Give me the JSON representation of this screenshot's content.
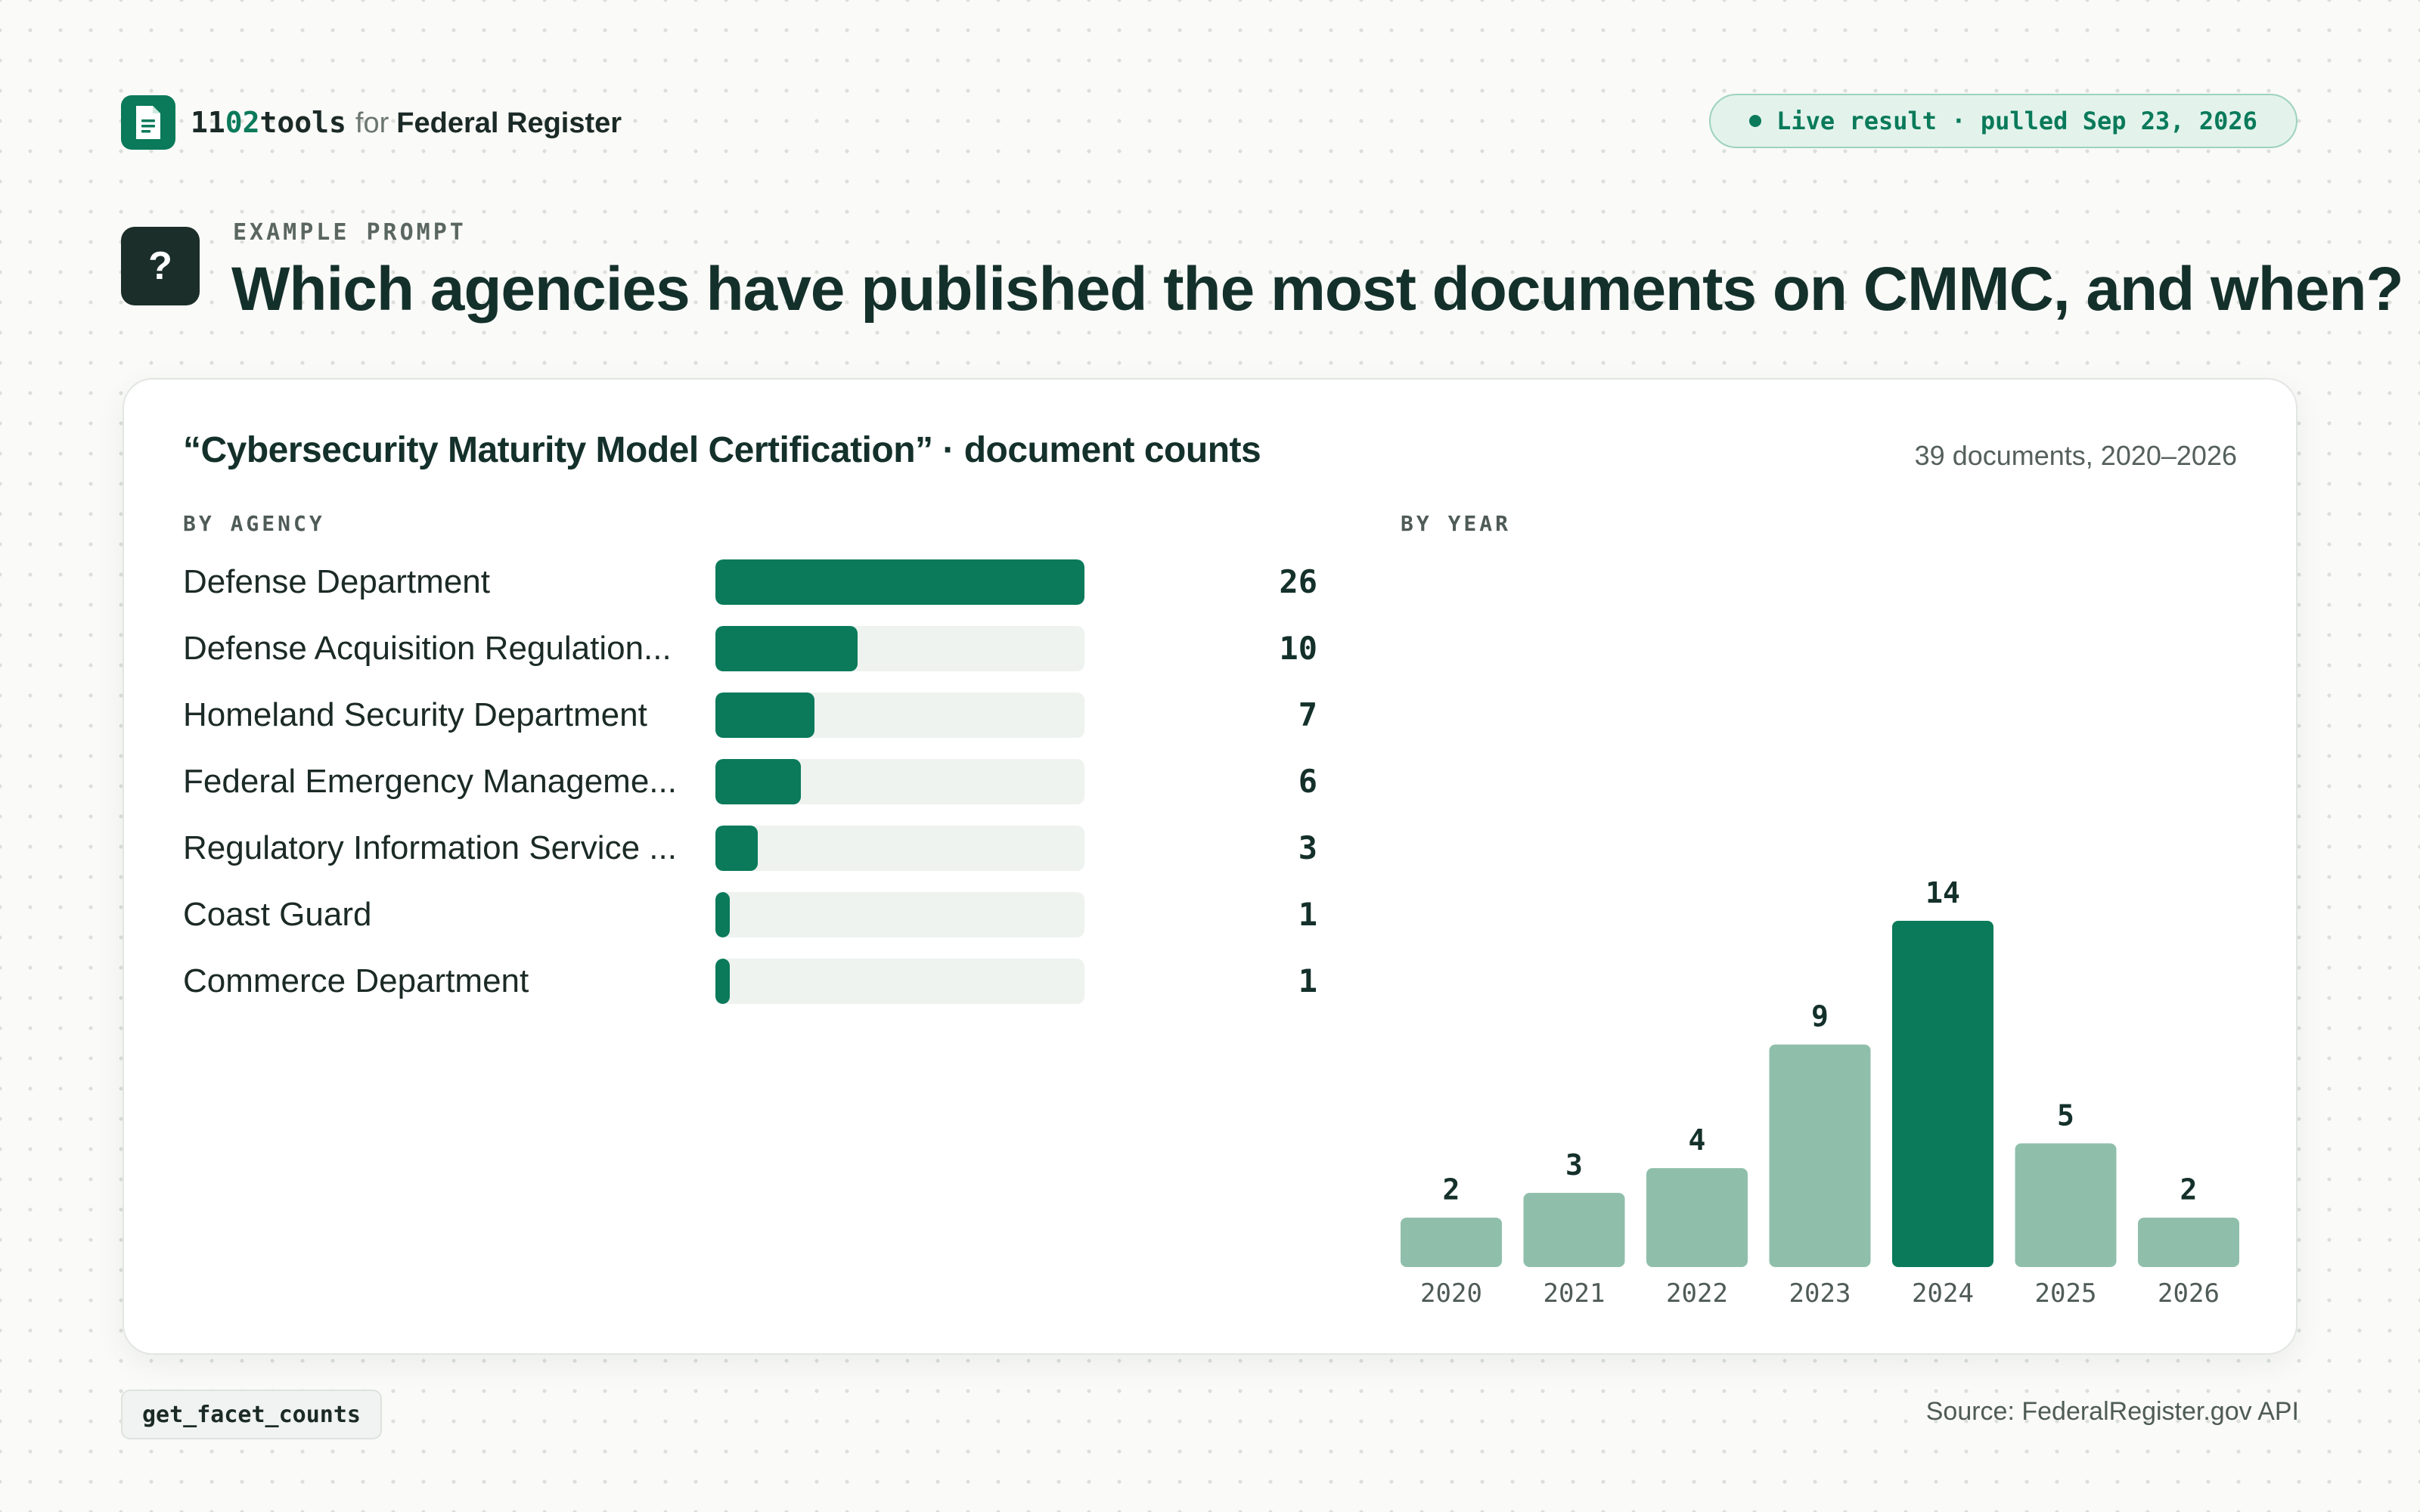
{
  "header": {
    "brand_name": "11",
    "brand_num": "02",
    "brand_name_end": "tools",
    "brand_for": "for",
    "brand_product": "Federal Register",
    "logo_icon": "document-icon",
    "status": "Live result · pulled Sep 23, 2026"
  },
  "question": {
    "badge": "?",
    "eyebrow": "EXAMPLE PROMPT",
    "title": "Which agencies have published the most documents on CMMC, and when?"
  },
  "card": {
    "title": "“Cybersecurity Maturity Model Certification” · document counts",
    "summary": "39 documents, 2020–2026",
    "agency_label": "BY AGENCY",
    "year_label": "BY YEAR"
  },
  "chart_data": [
    {
      "type": "bar",
      "orientation": "horizontal",
      "title": "BY AGENCY",
      "categories": [
        "Defense Department",
        "Defense Acquisition Regulation...",
        "Homeland Security Department",
        "Federal Emergency Manageme...",
        "Regulatory Information Service ...",
        "Coast Guard",
        "Commerce Department"
      ],
      "values": [
        26,
        10,
        7,
        6,
        3,
        1,
        1
      ],
      "xlim": [
        0,
        26
      ],
      "color": "#0a7a5a",
      "track_color": "#eef3f0"
    },
    {
      "type": "bar",
      "orientation": "vertical",
      "title": "BY YEAR",
      "categories": [
        "2020",
        "2021",
        "2022",
        "2023",
        "2024",
        "2025",
        "2026"
      ],
      "values": [
        2,
        3,
        4,
        9,
        14,
        5,
        2
      ],
      "ylim": [
        0,
        14
      ],
      "highlight": "2024",
      "color": "#8fbfab",
      "highlight_color": "#0a7a5a"
    }
  ],
  "footer": {
    "tool": "get_facet_counts",
    "source": "Source: FederalRegister.gov API"
  }
}
